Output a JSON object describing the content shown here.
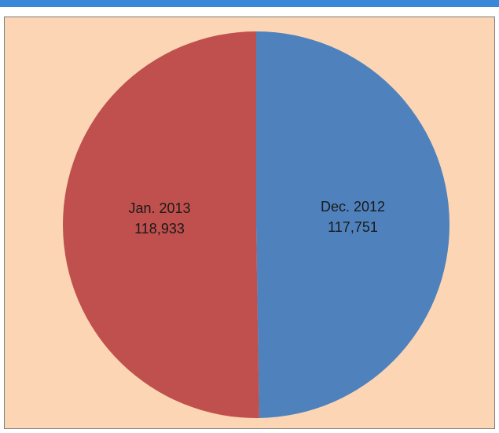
{
  "colors": {
    "header_bar": "#3a86d8",
    "chart_background": "#fcd5b4",
    "frame_border": "#7f7f7f",
    "label_text": "#1a1a1a"
  },
  "chart_data": {
    "type": "pie",
    "title": "",
    "legend": "none",
    "slices": [
      {
        "label": "Dec. 2012",
        "value": 117751,
        "value_text": "117,751",
        "color": "#4f81bd"
      },
      {
        "label": "Jan. 2013",
        "value": 118933,
        "value_text": "118,933",
        "color": "#c0504d"
      }
    ]
  }
}
